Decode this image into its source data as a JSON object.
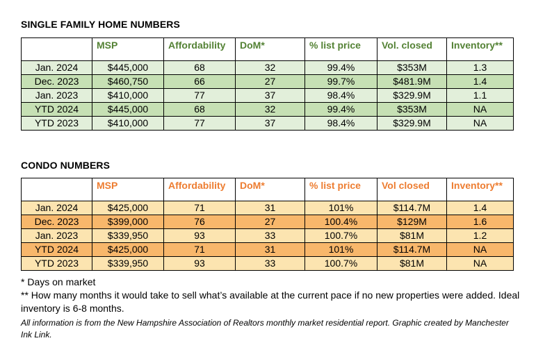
{
  "single_family": {
    "title": "SINGLE FAMILY HOME NUMBERS",
    "headers": [
      "",
      "MSP",
      "Affordability",
      "DoM*",
      "% list price",
      "Vol. closed",
      "Inventory**"
    ],
    "rows": [
      [
        "Jan. 2024",
        "$445,000",
        "68",
        "32",
        "99.4%",
        "$353M",
        "1.3"
      ],
      [
        "Dec. 2023",
        "$460,750",
        "66",
        "27",
        "99.7%",
        "$481.9M",
        "1.4"
      ],
      [
        "Jan. 2023",
        "$410,000",
        "77",
        "37",
        "98.4%",
        "$329.9M",
        "1.1"
      ],
      [
        "YTD 2024",
        "$445,000",
        "68",
        "32",
        "99.4%",
        "$353M",
        "NA"
      ],
      [
        "YTD 2023",
        "$410,000",
        "77",
        "37",
        "98.4%",
        "$329.9M",
        "NA"
      ]
    ]
  },
  "condo": {
    "title": "CONDO NUMBERS",
    "headers": [
      "",
      "MSP",
      "Affordability",
      "DoM*",
      "% list price",
      "Vol closed",
      "Inventory**"
    ],
    "rows": [
      [
        "Jan. 2024",
        "$425,000",
        "71",
        "31",
        "101%",
        "$114.7M",
        "1.4"
      ],
      [
        "Dec. 2023",
        "$399,000",
        "76",
        "27",
        "100.4%",
        "$129M",
        "1.6"
      ],
      [
        "Jan. 2023",
        "$339,950",
        "93",
        "33",
        "100.7%",
        "$81M",
        "1.2"
      ],
      [
        "YTD 2024",
        "$425,000",
        "71",
        "31",
        "101%",
        "$114.7M",
        "NA"
      ],
      [
        "YTD 2023",
        "$339,950",
        "93",
        "33",
        "100.7%",
        "$81M",
        "NA"
      ]
    ]
  },
  "notes": {
    "footnote_1": "* Days on market",
    "footnote_2": "** How many months it would take to sell what’s available at the current pace if no new properties were added. Ideal inventory is 6-8 months.",
    "credit": "All information is from the New Hampshire Association of Realtors monthly market residential report. Graphic created by Manchester Ink Link."
  },
  "colors": {
    "sfh_header_text": "#548235",
    "sfh_row_light": "#e2efda",
    "sfh_row_dark": "#c6e0b4",
    "condo_header_text": "#ed7d31",
    "condo_row_light": "#fce4b0",
    "condo_row_dark": "#f8b76b"
  }
}
